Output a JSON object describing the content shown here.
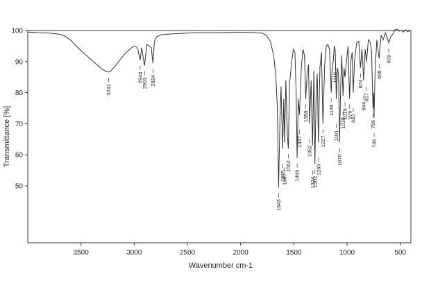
{
  "chart_data": {
    "type": "line",
    "title": "",
    "xlabel": "Wavenumber cm-1",
    "ylabel": "Transmittance [%]",
    "xlim": [
      4000,
      400
    ],
    "ylim": [
      10,
      100
    ],
    "x_reversed": true,
    "x_ticks": [
      3500,
      3000,
      2500,
      2000,
      1500,
      1000,
      500
    ],
    "y_ticks": [
      100,
      90,
      80,
      70,
      60,
      50
    ],
    "grid": false,
    "line_color": "#333333",
    "series": [
      {
        "x": [
          4000,
          3900,
          3800,
          3700,
          3650,
          3600,
          3550,
          3500,
          3450,
          3400,
          3350,
          3300,
          3260,
          3241,
          3220,
          3180,
          3140,
          3100,
          3050,
          3000,
          2970,
          2944,
          2930,
          2903,
          2880,
          2860,
          2840,
          2824,
          2810,
          2790,
          2750,
          2700,
          2600,
          2500,
          2400,
          2300,
          2200,
          2100,
          2000,
          1900,
          1800,
          1760,
          1720,
          1690,
          1670,
          1655,
          1643,
          1630,
          1620,
          1605,
          1595,
          1587,
          1575,
          1560,
          1552,
          1540,
          1520,
          1505,
          1490,
          1478,
          1469,
          1458,
          1447,
          1430,
          1415,
          1400,
          1388,
          1375,
          1362,
          1352,
          1338,
          1324,
          1312,
          1302,
          1290,
          1280,
          1269,
          1255,
          1240,
          1227,
          1210,
          1195,
          1180,
          1165,
          1149,
          1140,
          1130,
          1120,
          1110,
          1101,
          1090,
          1080,
          1070,
          1060,
          1050,
          1038,
          1028,
          1019,
          1005,
          990,
          976,
          965,
          952,
          942,
          930,
          910,
          890,
          874,
          860,
          844,
          830,
          817,
          800,
          785,
          770,
          756,
          750,
          746,
          735,
          720,
          698,
          680,
          660,
          640,
          620,
          609,
          590,
          570,
          550,
          530,
          510,
          490,
          470,
          450,
          430,
          410,
          400
        ],
        "y": [
          99.5,
          99.3,
          99.2,
          98.8,
          98.2,
          97.0,
          95.2,
          93.5,
          92.0,
          90.5,
          89.0,
          87.5,
          86.8,
          86.6,
          87.0,
          88.5,
          90.3,
          92.0,
          93.8,
          95.0,
          94.6,
          90.5,
          94.5,
          88.7,
          95.5,
          95.0,
          94.5,
          89.5,
          96.5,
          98.0,
          98.6,
          98.8,
          99.0,
          99.2,
          99.3,
          99.3,
          99.3,
          99.4,
          99.4,
          99.4,
          99.2,
          98.5,
          96.5,
          92.0,
          86.0,
          75.0,
          49.5,
          72.0,
          82.0,
          62.0,
          78.0,
          64.0,
          84.0,
          66.0,
          62.0,
          83.0,
          90.0,
          94.0,
          93.0,
          80.0,
          59.0,
          78.0,
          73.0,
          88.0,
          94.0,
          92.0,
          78.0,
          86.0,
          89.0,
          70.0,
          84.0,
          63.0,
          87.0,
          57.0,
          80.0,
          86.0,
          64.0,
          88.0,
          93.0,
          70.0,
          89.0,
          95.0,
          95.5,
          94.0,
          80.0,
          88.0,
          90.0,
          95.0,
          93.5,
          78.0,
          88.0,
          86.0,
          64.0,
          82.0,
          92.0,
          79.0,
          88.0,
          85.0,
          90.0,
          95.0,
          78.0,
          90.0,
          93.0,
          80.0,
          90.0,
          96.0,
          96.5,
          88.0,
          94.0,
          84.0,
          94.0,
          90.0,
          97.0,
          96.5,
          93.5,
          75.0,
          80.0,
          72.0,
          88.0,
          97.0,
          91.0,
          98.5,
          97.0,
          99.2,
          97.5,
          96.0,
          98.0,
          98.8,
          100.2,
          100.5,
          99.8,
          100.0,
          99.5,
          100.3,
          99.6,
          100.0,
          99.8
        ]
      }
    ],
    "peak_labels": [
      {
        "text": "3241",
        "x": 3241
      },
      {
        "text": "2944",
        "x": 2944
      },
      {
        "text": "2903",
        "x": 2903
      },
      {
        "text": "2824",
        "x": 2824
      },
      {
        "text": "1643",
        "x": 1643
      },
      {
        "text": "1605",
        "x": 1605
      },
      {
        "text": "1587",
        "x": 1587
      },
      {
        "text": "1552",
        "x": 1552
      },
      {
        "text": "1469",
        "x": 1469
      },
      {
        "text": "1447",
        "x": 1447
      },
      {
        "text": "1388",
        "x": 1388
      },
      {
        "text": "1352",
        "x": 1352
      },
      {
        "text": "1324",
        "x": 1324
      },
      {
        "text": "1302",
        "x": 1302
      },
      {
        "text": "1269",
        "x": 1269
      },
      {
        "text": "1227",
        "x": 1227
      },
      {
        "text": "1149",
        "x": 1149
      },
      {
        "text": "1110",
        "x": 1110
      },
      {
        "text": "1101",
        "x": 1101
      },
      {
        "text": "1070",
        "x": 1070
      },
      {
        "text": "1038",
        "x": 1038
      },
      {
        "text": "1019",
        "x": 1019
      },
      {
        "text": "976",
        "x": 976
      },
      {
        "text": "942",
        "x": 942
      },
      {
        "text": "874",
        "x": 874
      },
      {
        "text": "844",
        "x": 844
      },
      {
        "text": "817",
        "x": 817
      },
      {
        "text": "756",
        "x": 756
      },
      {
        "text": "746",
        "x": 746
      },
      {
        "text": "698",
        "x": 698
      },
      {
        "text": "609",
        "x": 609
      }
    ]
  }
}
